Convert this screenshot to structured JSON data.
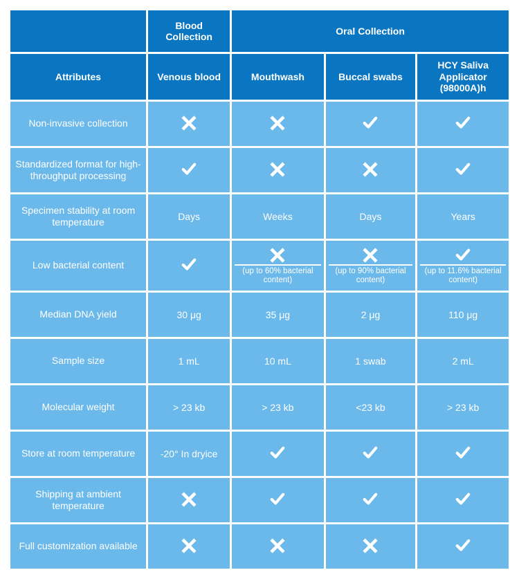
{
  "colors": {
    "header_bg": "#0a76c2",
    "cell_bg": "#6bb8ea",
    "text": "#ffffff",
    "border_spacing": "#ffffff"
  },
  "structure": {
    "type": "table",
    "columns": 5,
    "attribute_col_width": 200,
    "data_col_width": 125
  },
  "headers": {
    "blood": "Blood Collection",
    "oral": "Oral Collection",
    "attributes": "Attributes",
    "venous": "Venous blood",
    "mouthwash": "Mouthwash",
    "buccal": "Buccal swabs",
    "hcy": "HCY Saliva Applicator (98000A)h"
  },
  "rows": {
    "r1": {
      "label": "Non-invasive collection",
      "v": "x",
      "m": "x",
      "b": "check",
      "h": "check"
    },
    "r2": {
      "label": "Standardized format for high-throughput processing",
      "v": "check",
      "m": "x",
      "b": "x",
      "h": "check"
    },
    "r3": {
      "label": "Specimen stability at room temperature",
      "v": "Days",
      "m": "Weeks",
      "b": "Days",
      "h": "Years"
    },
    "r4": {
      "label": "Low bacterial content",
      "v": "check",
      "m_mark": "x",
      "m_sub": "(up to 60% bacterial content)",
      "b_mark": "x",
      "b_sub": "(up to 90% bacterial content)",
      "h_mark": "check",
      "h_sub": "(up to 11.6% bacterial content)"
    },
    "r5": {
      "label": "Median DNA yield",
      "v": "30 μg",
      "m": "35 μg",
      "b": "2 μg",
      "h": "110 μg"
    },
    "r6": {
      "label": "Sample size",
      "v": "1 mL",
      "m": "10 mL",
      "b": "1 swab",
      "h": "2 mL"
    },
    "r7": {
      "label": "Molecular weight",
      "v": "> 23 kb",
      "m": "> 23 kb",
      "b": "<23 kb",
      "h": "> 23 kb"
    },
    "r8": {
      "label": "Store at room temperature",
      "v": "-20° In dryice",
      "m": "check",
      "b": "check",
      "h": "check"
    },
    "r9": {
      "label": "Shipping at ambient temperature",
      "v": "x",
      "m": "check",
      "b": "check",
      "h": "check"
    },
    "r10": {
      "label": "Full customization available",
      "v": "x",
      "m": "x",
      "b": "x",
      "h": "check"
    }
  }
}
